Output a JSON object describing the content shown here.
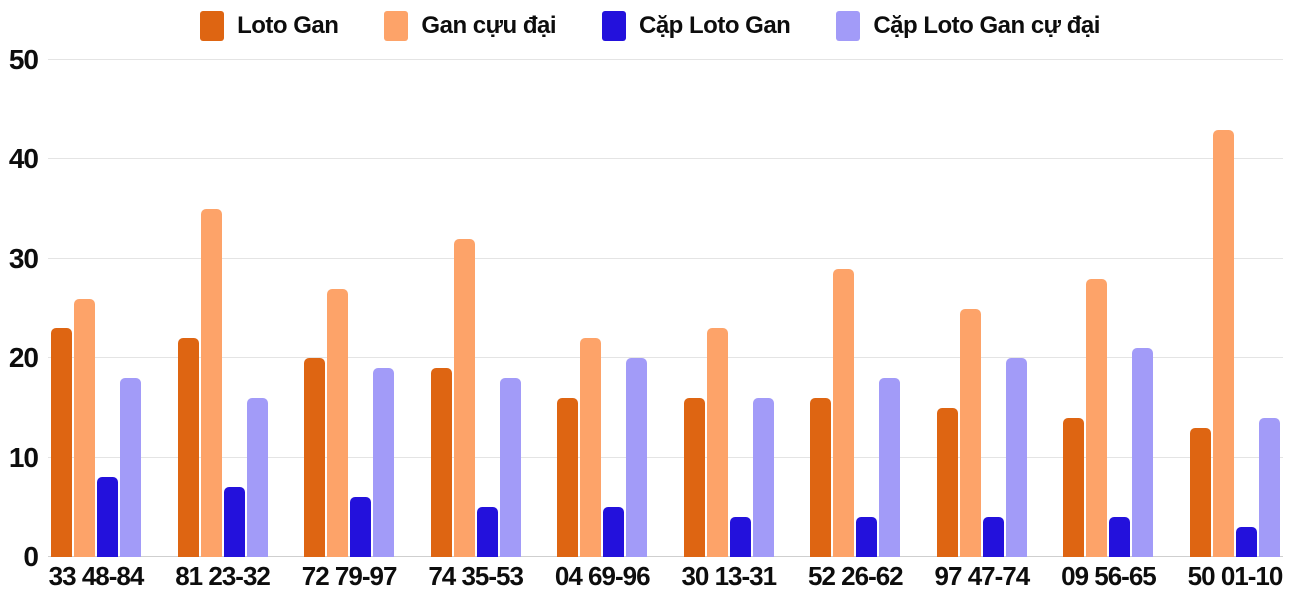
{
  "chart_data": {
    "type": "bar",
    "title": "",
    "xlabel": "",
    "ylabel": "",
    "categories": [
      "33 48-84",
      "81 23-32",
      "72 79-97",
      "74 35-53",
      "04 69-96",
      "30 13-31",
      "52 26-62",
      "97 47-74",
      "09 56-65",
      "50 01-10"
    ],
    "series": [
      {
        "name": "Loto Gan",
        "color": "#de6512",
        "values": [
          23,
          22,
          20,
          19,
          16,
          16,
          16,
          15,
          14,
          13
        ]
      },
      {
        "name": "Gan cựu đại",
        "color": "#fda369",
        "values": [
          26,
          35,
          27,
          32,
          22,
          23,
          29,
          25,
          28,
          43
        ]
      },
      {
        "name": "Cặp Loto Gan",
        "color": "#2311dc",
        "values": [
          8,
          7,
          6,
          5,
          5,
          4,
          4,
          4,
          4,
          3
        ]
      },
      {
        "name": "Cặp Loto Gan cự đại",
        "color": "#a29bf8",
        "values": [
          18,
          16,
          19,
          18,
          20,
          16,
          18,
          20,
          21,
          14
        ]
      }
    ],
    "ylim": [
      0,
      50
    ],
    "yticks": [
      0,
      10,
      20,
      30,
      40,
      50
    ],
    "grid": true,
    "legend_position": "top",
    "text_color": "#0d0d0d",
    "gridline_color": "#e4e4e4"
  }
}
